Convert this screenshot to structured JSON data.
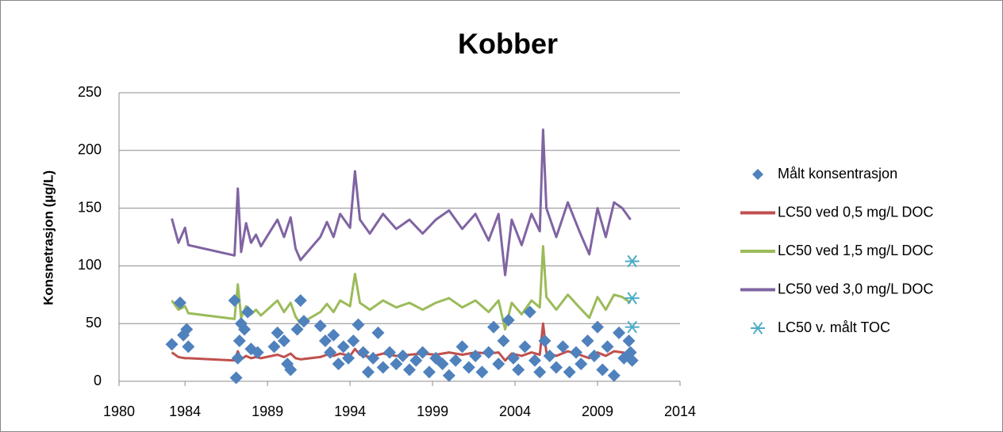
{
  "chart_data": {
    "type": "scatter",
    "title": "Kobber",
    "ylabel": "Konsnetrasjon  (µg/L)",
    "xlim": [
      1980,
      2014
    ],
    "xticks": [
      1980,
      1984,
      1989,
      1994,
      1999,
      2004,
      2009,
      2014
    ],
    "ylim": [
      0,
      250
    ],
    "yticks": [
      0,
      50,
      100,
      150,
      200,
      250
    ],
    "grid": true,
    "legend": "right",
    "series": [
      {
        "name": "Målt konsentrasjon",
        "color": "#4f81bd",
        "mode": "markers",
        "marker": "diamond",
        "x": [
          1983.2,
          1983.7,
          1983.9,
          1984.1,
          1984.2,
          1987.0,
          1987.1,
          1987.2,
          1987.3,
          1987.4,
          1987.6,
          1987.8,
          1988.0,
          1988.4,
          1989.4,
          1989.6,
          1990.0,
          1990.2,
          1990.4,
          1990.8,
          1991.0,
          1991.2,
          1992.2,
          1992.5,
          1992.8,
          1993.0,
          1993.3,
          1993.6,
          1993.9,
          1994.2,
          1994.5,
          1994.8,
          1995.1,
          1995.4,
          1995.7,
          1996.0,
          1996.4,
          1996.8,
          1997.2,
          1997.6,
          1998.0,
          1998.4,
          1998.8,
          1999.2,
          1999.6,
          2000.0,
          2000.4,
          2000.8,
          2001.2,
          2001.6,
          2002.0,
          2002.4,
          2002.7,
          2003.0,
          2003.3,
          2003.6,
          2003.9,
          2004.2,
          2004.6,
          2004.9,
          2005.2,
          2005.5,
          2005.8,
          2006.1,
          2006.5,
          2006.9,
          2007.3,
          2007.7,
          2008.0,
          2008.4,
          2008.8,
          2009.0,
          2009.3,
          2009.6,
          2010.0,
          2010.3,
          2010.6,
          2010.9,
          2011.0,
          2011.1
        ],
        "values": [
          32,
          68,
          40,
          45,
          30,
          70,
          3,
          20,
          35,
          50,
          45,
          60,
          28,
          25,
          30,
          42,
          35,
          15,
          10,
          45,
          70,
          52,
          48,
          35,
          25,
          40,
          15,
          30,
          20,
          35,
          49,
          25,
          8,
          20,
          42,
          12,
          25,
          15,
          22,
          10,
          18,
          25,
          8,
          20,
          15,
          5,
          18,
          30,
          12,
          22,
          8,
          25,
          47,
          15,
          35,
          53,
          20,
          10,
          30,
          60,
          18,
          8,
          35,
          22,
          12,
          30,
          8,
          25,
          15,
          35,
          22,
          47,
          10,
          30,
          5,
          42,
          20,
          35,
          25,
          18
        ]
      },
      {
        "name": "LC50 ved 0,5 mg/L DOC",
        "color": "#c0504d",
        "mode": "lines",
        "x": [
          1983.2,
          1983.6,
          1984.0,
          1984.2,
          1987.0,
          1987.2,
          1987.4,
          1987.7,
          1988.0,
          1988.3,
          1988.6,
          1989.6,
          1990.0,
          1990.4,
          1990.7,
          1991.0,
          1992.2,
          1992.6,
          1993.0,
          1993.4,
          1994.0,
          1994.3,
          1994.6,
          1995.2,
          1996.0,
          1996.8,
          1997.6,
          1998.4,
          1999.2,
          2000.0,
          2000.8,
          2001.6,
          2002.4,
          2003.0,
          2003.4,
          2003.8,
          2004.4,
          2005.0,
          2005.5,
          2005.7,
          2005.9,
          2006.5,
          2007.2,
          2007.9,
          2008.5,
          2009.0,
          2009.5,
          2010.0,
          2010.5,
          2011.0
        ],
        "values": [
          25,
          21,
          20,
          20,
          18,
          26,
          19,
          22,
          20,
          21,
          20,
          23,
          21,
          24,
          20,
          19,
          21,
          23,
          22,
          24,
          22,
          28,
          23,
          21,
          24,
          22,
          23,
          24,
          23,
          25,
          23,
          25,
          24,
          25,
          18,
          24,
          22,
          25,
          23,
          50,
          25,
          22,
          26,
          23,
          20,
          25,
          22,
          26,
          25,
          24
        ]
      },
      {
        "name": "LC50 ved 1,5 mg/L DOC",
        "color": "#9bbb59",
        "mode": "lines",
        "x": [
          1983.2,
          1983.6,
          1984.0,
          1984.2,
          1987.0,
          1987.2,
          1987.4,
          1987.7,
          1988.0,
          1988.3,
          1988.6,
          1989.6,
          1990.0,
          1990.4,
          1990.7,
          1991.0,
          1992.2,
          1992.6,
          1993.0,
          1993.4,
          1994.0,
          1994.3,
          1994.6,
          1995.2,
          1996.0,
          1996.8,
          1997.6,
          1998.4,
          1999.2,
          2000.0,
          2000.8,
          2001.6,
          2002.4,
          2003.0,
          2003.4,
          2003.8,
          2004.4,
          2005.0,
          2005.5,
          2005.7,
          2005.9,
          2006.5,
          2007.2,
          2007.9,
          2008.5,
          2009.0,
          2009.5,
          2010.0,
          2010.5,
          2011.0
        ],
        "values": [
          70,
          62,
          65,
          59,
          54,
          84,
          55,
          65,
          58,
          62,
          57,
          70,
          60,
          68,
          56,
          50,
          60,
          67,
          60,
          70,
          65,
          93,
          68,
          62,
          70,
          64,
          68,
          62,
          68,
          72,
          64,
          70,
          60,
          70,
          45,
          68,
          58,
          70,
          64,
          117,
          73,
          62,
          75,
          64,
          55,
          73,
          62,
          75,
          73,
          68
        ]
      },
      {
        "name": "LC50 ved 3,0 mg/L DOC",
        "color": "#8064a2",
        "mode": "lines",
        "x": [
          1983.2,
          1983.6,
          1984.0,
          1984.2,
          1987.0,
          1987.2,
          1987.4,
          1987.7,
          1988.0,
          1988.3,
          1988.6,
          1989.6,
          1990.0,
          1990.4,
          1990.7,
          1991.0,
          1992.2,
          1992.6,
          1993.0,
          1993.4,
          1994.0,
          1994.3,
          1994.6,
          1995.2,
          1996.0,
          1996.8,
          1997.6,
          1998.4,
          1999.2,
          2000.0,
          2000.8,
          2001.6,
          2002.4,
          2003.0,
          2003.4,
          2003.8,
          2004.4,
          2005.0,
          2005.5,
          2005.7,
          2005.9,
          2006.5,
          2007.2,
          2007.9,
          2008.5,
          2009.0,
          2009.5,
          2010.0,
          2010.5,
          2011.0
        ],
        "values": [
          141,
          120,
          133,
          118,
          109,
          167,
          112,
          137,
          120,
          127,
          117,
          140,
          125,
          142,
          115,
          105,
          125,
          138,
          125,
          145,
          133,
          182,
          140,
          128,
          145,
          132,
          140,
          128,
          140,
          148,
          132,
          145,
          122,
          145,
          92,
          140,
          118,
          145,
          130,
          218,
          150,
          125,
          155,
          130,
          110,
          150,
          125,
          155,
          150,
          140
        ]
      },
      {
        "name": "LC50 v. målt TOC",
        "color": "#4bacc6",
        "mode": "markers",
        "marker": "asterisk",
        "x": [
          2011.1,
          2011.1,
          2011.1
        ],
        "values": [
          104,
          72,
          47
        ]
      }
    ]
  }
}
